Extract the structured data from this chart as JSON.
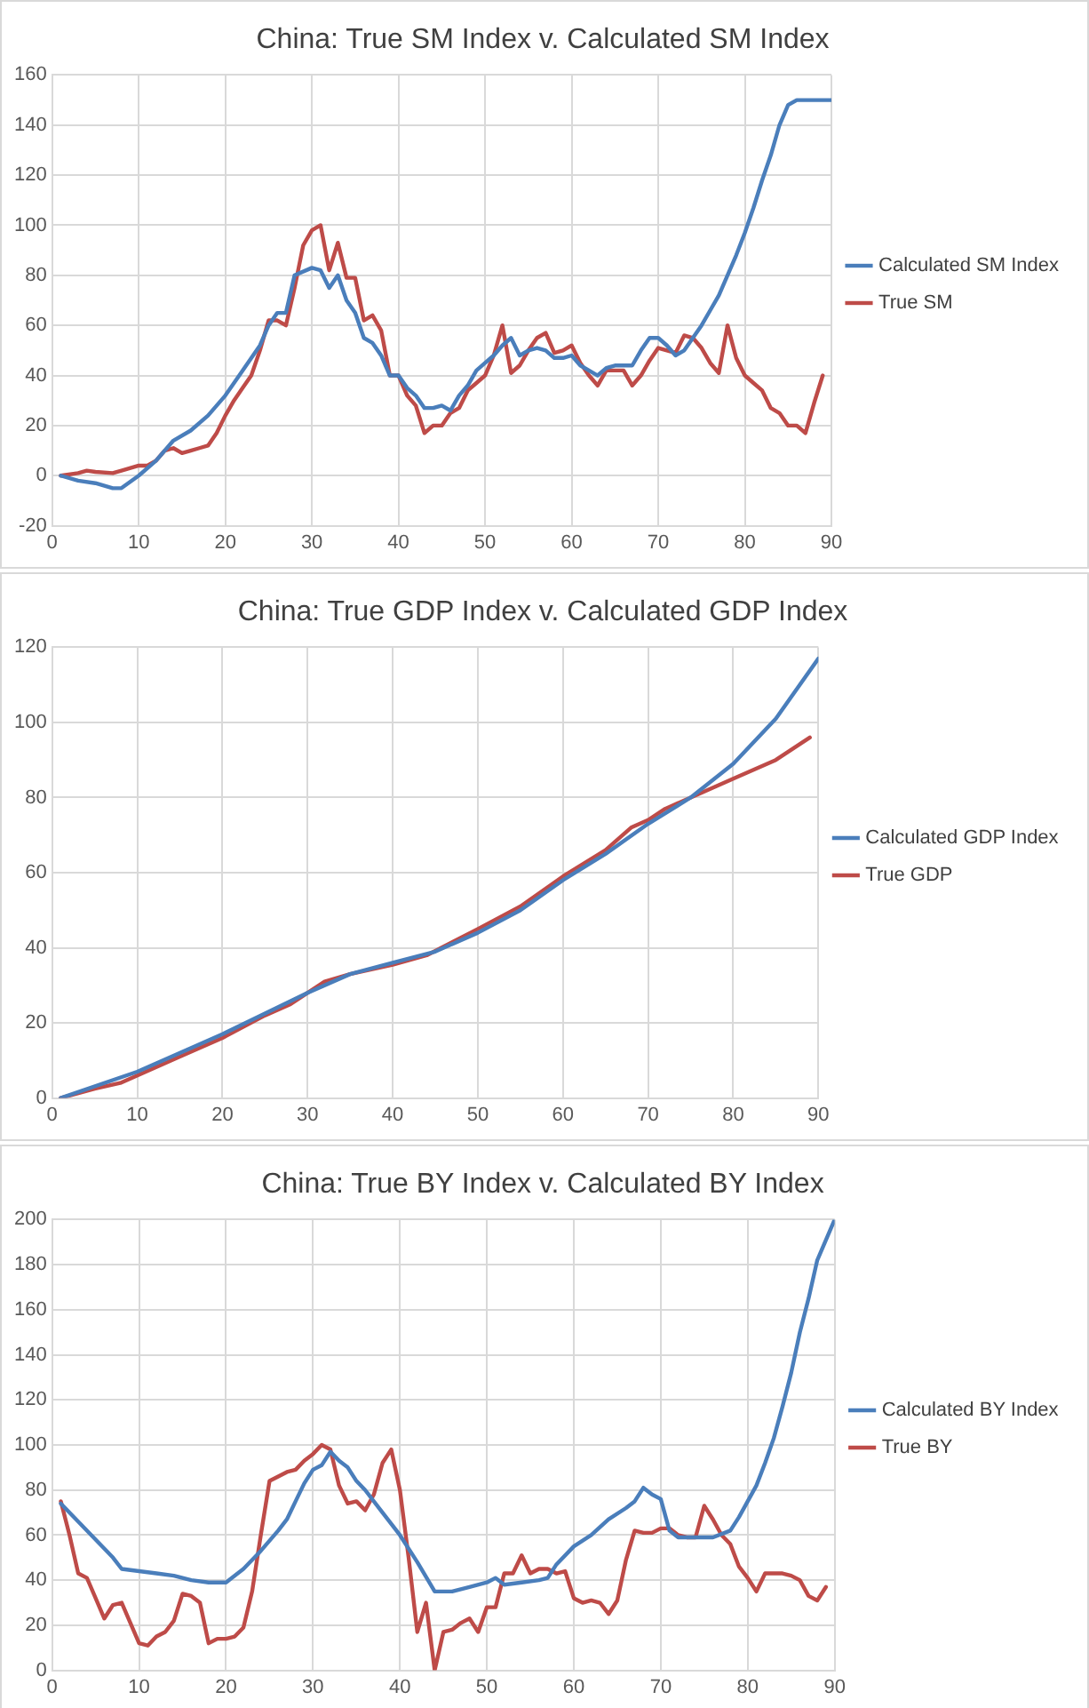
{
  "chart_data": [
    {
      "type": "line",
      "title": "China: True SM Index v. Calculated SM Index",
      "xlim": [
        0,
        90
      ],
      "xticks": [
        0,
        10,
        20,
        30,
        40,
        50,
        60,
        70,
        80,
        90
      ],
      "ylim": [
        -20,
        160
      ],
      "yticks": [
        -20,
        0,
        20,
        40,
        60,
        80,
        100,
        120,
        140,
        160
      ],
      "grid": true,
      "legend": "right",
      "marker": "none",
      "series": [
        {
          "name": "Calculated SM Index",
          "color": "#4a7ebb",
          "x": [
            1,
            3,
            5,
            7,
            8,
            10,
            12,
            14,
            16,
            18,
            20,
            22,
            24,
            25,
            26,
            27,
            28,
            30,
            31,
            32,
            33,
            34,
            35,
            36,
            37,
            38,
            39,
            40,
            41,
            42,
            43,
            44,
            45,
            46,
            47,
            48,
            49,
            50,
            51,
            52,
            53,
            54,
            55,
            56,
            57,
            58,
            59,
            60,
            61,
            62,
            63,
            64,
            65,
            66,
            67,
            68,
            69,
            70,
            71,
            72,
            73,
            74,
            75,
            76,
            77,
            78,
            79,
            80,
            81,
            82,
            83,
            84,
            85,
            86,
            90
          ],
          "values": [
            0,
            -2,
            -3,
            -5,
            -5,
            0,
            6,
            14,
            18,
            24,
            32,
            42,
            52,
            60,
            65,
            65,
            80,
            83,
            82,
            75,
            80,
            70,
            65,
            55,
            53,
            48,
            40,
            40,
            35,
            32,
            27,
            27,
            28,
            26,
            32,
            36,
            42,
            45,
            48,
            52,
            55,
            48,
            50,
            51,
            50,
            47,
            47,
            48,
            44,
            42,
            40,
            43,
            44,
            44,
            44,
            50,
            55,
            55,
            52,
            48,
            50,
            55,
            60,
            66,
            72,
            80,
            88,
            97,
            107,
            118,
            128,
            140,
            148,
            150,
            150
          ]
        },
        {
          "name": "True SM",
          "color": "#be4b48",
          "x": [
            1,
            3,
            4,
            5,
            7,
            8,
            10,
            11,
            12,
            13,
            14,
            15,
            16,
            17,
            18,
            19,
            20,
            21,
            22,
            23,
            24,
            25,
            26,
            27,
            28,
            29,
            30,
            31,
            32,
            33,
            34,
            35,
            36,
            37,
            38,
            39,
            40,
            41,
            42,
            43,
            44,
            45,
            46,
            47,
            48,
            49,
            50,
            51,
            52,
            53,
            54,
            55,
            56,
            57,
            58,
            59,
            60,
            61,
            62,
            63,
            64,
            65,
            66,
            67,
            68,
            69,
            70,
            71,
            72,
            73,
            74,
            75,
            76,
            77,
            78,
            79,
            80,
            81,
            82,
            83,
            84,
            85,
            86,
            87,
            88,
            89
          ],
          "values": [
            0,
            1,
            2,
            1.5,
            1,
            2,
            4,
            4,
            6,
            10,
            11,
            9,
            10,
            11,
            12,
            17,
            24,
            30,
            35,
            40,
            50,
            62,
            62,
            60,
            75,
            92,
            98,
            100,
            82,
            93,
            79,
            79,
            62,
            64,
            58,
            40,
            40,
            32,
            28,
            17,
            20,
            20,
            25,
            27,
            34,
            37,
            40,
            48,
            60,
            41,
            44,
            50,
            55,
            57,
            49,
            50,
            52,
            45,
            40,
            36,
            42,
            42,
            42,
            36,
            40,
            46,
            51,
            50,
            49,
            56,
            55,
            51,
            45,
            41,
            60,
            47,
            40,
            37,
            34,
            27,
            25,
            20,
            20,
            17,
            29,
            40
          ]
        }
      ]
    },
    {
      "type": "line",
      "title": "China: True GDP Index v. Calculated GDP Index",
      "xlim": [
        0,
        90
      ],
      "xticks": [
        0,
        10,
        20,
        30,
        40,
        50,
        60,
        70,
        80,
        90
      ],
      "ylim": [
        0,
        120
      ],
      "yticks": [
        0,
        20,
        40,
        60,
        80,
        100,
        120
      ],
      "grid": true,
      "legend": "right",
      "marker": "none",
      "series": [
        {
          "name": "Calculated GDP Index",
          "color": "#4a7ebb",
          "x": [
            1,
            10,
            20,
            30,
            35,
            40,
            45,
            50,
            55,
            60,
            65,
            70,
            75,
            80,
            85,
            90
          ],
          "values": [
            0,
            7,
            17,
            28,
            33,
            36,
            39,
            44,
            50,
            58,
            65,
            73,
            80,
            89,
            101,
            117
          ]
        },
        {
          "name": "True GDP",
          "color": "#be4b48",
          "x": [
            1,
            5,
            8,
            10,
            15,
            20,
            25,
            28,
            32,
            35,
            40,
            44,
            50,
            55,
            60,
            65,
            68,
            70,
            72,
            75,
            78,
            80,
            85,
            89
          ],
          "values": [
            0,
            2.5,
            4,
            6,
            11,
            16,
            22,
            25,
            31,
            33,
            35.5,
            38,
            45,
            51,
            59,
            66,
            72,
            74,
            77,
            80,
            83,
            85,
            90,
            96
          ]
        }
      ]
    },
    {
      "type": "line",
      "title": "China: True BY Index v. Calculated BY Index",
      "xlim": [
        0,
        90
      ],
      "xticks": [
        0,
        10,
        20,
        30,
        40,
        50,
        60,
        70,
        80,
        90
      ],
      "ylim": [
        0,
        200
      ],
      "yticks": [
        0,
        20,
        40,
        60,
        80,
        100,
        120,
        140,
        160,
        180,
        200
      ],
      "grid": true,
      "legend": "right",
      "marker": "none",
      "series": [
        {
          "name": "Calculated BY Index",
          "color": "#4a7ebb",
          "x": [
            1,
            3,
            5,
            7,
            8,
            10,
            12,
            14,
            16,
            18,
            20,
            22,
            24,
            26,
            27,
            28,
            29,
            30,
            31,
            32,
            33,
            34,
            35,
            36,
            38,
            40,
            42,
            44,
            46,
            48,
            50,
            51,
            52,
            54,
            56,
            57,
            58,
            60,
            62,
            64,
            66,
            67,
            68,
            69,
            70,
            71,
            72,
            74,
            76,
            78,
            79,
            80,
            81,
            82,
            83,
            84,
            85,
            86,
            87,
            88,
            90
          ],
          "values": [
            74,
            66,
            58,
            50,
            45,
            44,
            43,
            42,
            40,
            39,
            39,
            45,
            53,
            62,
            67,
            75,
            83,
            89,
            91,
            97,
            93,
            90,
            84,
            80,
            70,
            60,
            48,
            35,
            35,
            37,
            39,
            41,
            38,
            39,
            40,
            41,
            47,
            55,
            60,
            67,
            72,
            75,
            81,
            78,
            76,
            62,
            59,
            59,
            59,
            62,
            68,
            75,
            82,
            92,
            103,
            117,
            132,
            150,
            165,
            182,
            200
          ]
        },
        {
          "name": "True BY",
          "color": "#be4b48",
          "x": [
            1,
            2,
            3,
            4,
            5,
            6,
            7,
            8,
            9,
            10,
            11,
            12,
            13,
            14,
            15,
            16,
            17,
            18,
            19,
            20,
            21,
            22,
            23,
            24,
            25,
            26,
            27,
            28,
            29,
            30,
            31,
            32,
            33,
            34,
            35,
            36,
            37,
            38,
            39,
            40,
            41,
            42,
            43,
            44,
            45,
            46,
            47,
            48,
            49,
            50,
            51,
            52,
            53,
            54,
            55,
            56,
            57,
            58,
            59,
            60,
            61,
            62,
            63,
            64,
            65,
            66,
            67,
            68,
            69,
            70,
            71,
            72,
            73,
            74,
            75,
            76,
            77,
            78,
            79,
            80,
            81,
            82,
            83,
            84,
            85,
            86,
            87,
            88,
            89
          ],
          "values": [
            75,
            60,
            43,
            41,
            32,
            23,
            29,
            30,
            21,
            12,
            11,
            15,
            17,
            22,
            34,
            33,
            30,
            12,
            14,
            14,
            15,
            19,
            35,
            60,
            84,
            86,
            88,
            89,
            93,
            96,
            100,
            98,
            82,
            74,
            75,
            71,
            78,
            92,
            98,
            80,
            50,
            17,
            30,
            0,
            17,
            18,
            21,
            23,
            17,
            28,
            28,
            43,
            43,
            51,
            43,
            45,
            45,
            43,
            44,
            32,
            30,
            31,
            30,
            25,
            31,
            49,
            62,
            61,
            61,
            63,
            63,
            60,
            59,
            59,
            73,
            67,
            60,
            56,
            46,
            41,
            35,
            43,
            43,
            43,
            42,
            40,
            33,
            31,
            37
          ]
        }
      ]
    }
  ]
}
